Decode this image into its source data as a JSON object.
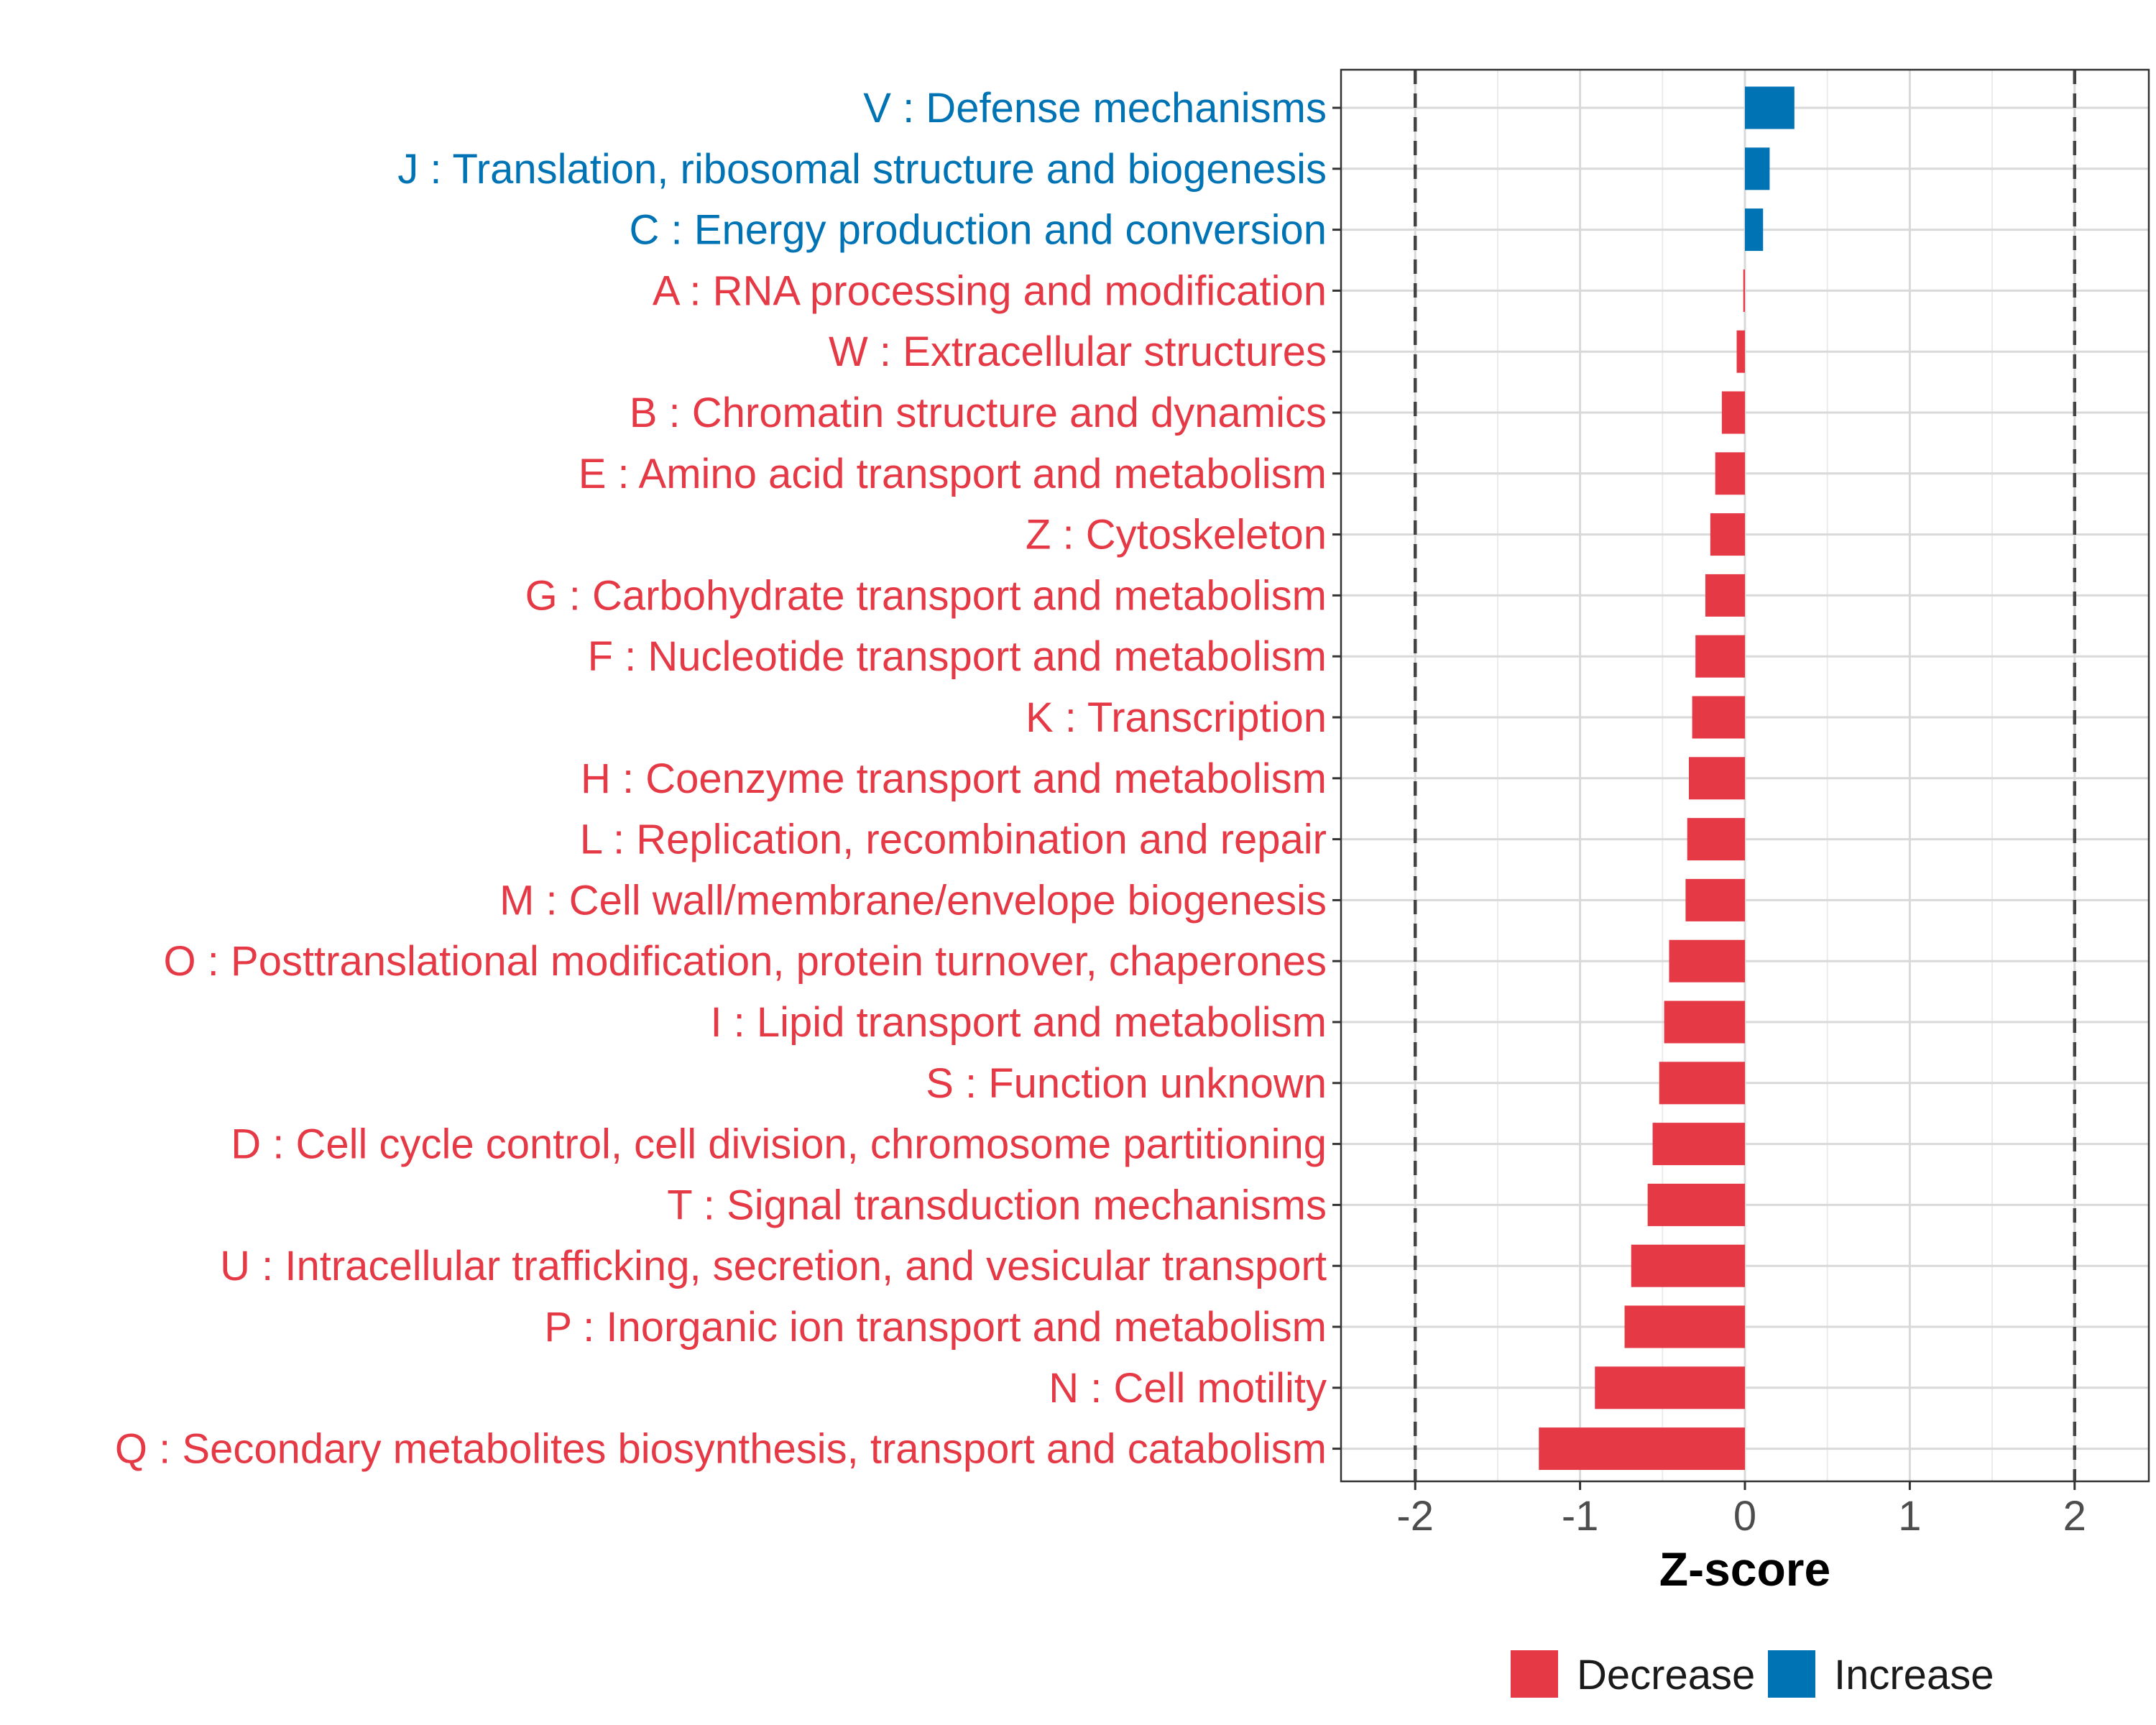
{
  "chart_data": {
    "type": "bar",
    "orientation": "horizontal",
    "xlabel": "Z-score",
    "ylabel": "",
    "xlim": [
      -2.45,
      2.45
    ],
    "xticks": [
      -2,
      -1,
      0,
      1,
      2
    ],
    "xtick_labels": [
      "-2",
      "-1",
      "0",
      "1",
      "2"
    ],
    "reference_lines": [
      -2,
      2
    ],
    "grid": true,
    "legend_position": "bottom",
    "colors": {
      "Decrease": "#E63946",
      "Increase": "#0073B5"
    },
    "legend": [
      {
        "name": "Decrease",
        "color": "#E63946"
      },
      {
        "name": "Increase",
        "color": "#0073B5"
      }
    ],
    "categories": [
      "V : Defense mechanisms",
      "J : Translation, ribosomal structure and biogenesis",
      "C : Energy production and conversion",
      "A : RNA processing and modification",
      "W : Extracellular structures",
      "B : Chromatin structure and dynamics",
      "E : Amino acid transport and metabolism",
      "Z : Cytoskeleton",
      "G : Carbohydrate transport and metabolism",
      "F : Nucleotide transport and metabolism",
      "K : Transcription",
      "H : Coenzyme transport and metabolism",
      "L : Replication, recombination and repair",
      "M : Cell wall/membrane/envelope biogenesis",
      "O : Posttranslational modification, protein turnover, chaperones",
      "I : Lipid transport and metabolism",
      "S : Function unknown",
      "D : Cell cycle control, cell division, chromosome partitioning",
      "T : Signal transduction mechanisms",
      "U : Intracellular trafficking, secretion, and vesicular transport",
      "P : Inorganic ion transport and metabolism",
      "N : Cell motility",
      "Q : Secondary metabolites biosynthesis, transport and catabolism"
    ],
    "values": [
      0.3,
      0.15,
      0.11,
      -0.01,
      -0.05,
      -0.14,
      -0.18,
      -0.21,
      -0.24,
      -0.3,
      -0.32,
      -0.34,
      -0.35,
      -0.36,
      -0.46,
      -0.49,
      -0.52,
      -0.56,
      -0.59,
      -0.69,
      -0.73,
      -0.91,
      -1.25
    ],
    "groups": [
      "Increase",
      "Increase",
      "Increase",
      "Decrease",
      "Decrease",
      "Decrease",
      "Decrease",
      "Decrease",
      "Decrease",
      "Decrease",
      "Decrease",
      "Decrease",
      "Decrease",
      "Decrease",
      "Decrease",
      "Decrease",
      "Decrease",
      "Decrease",
      "Decrease",
      "Decrease",
      "Decrease",
      "Decrease",
      "Decrease"
    ]
  }
}
